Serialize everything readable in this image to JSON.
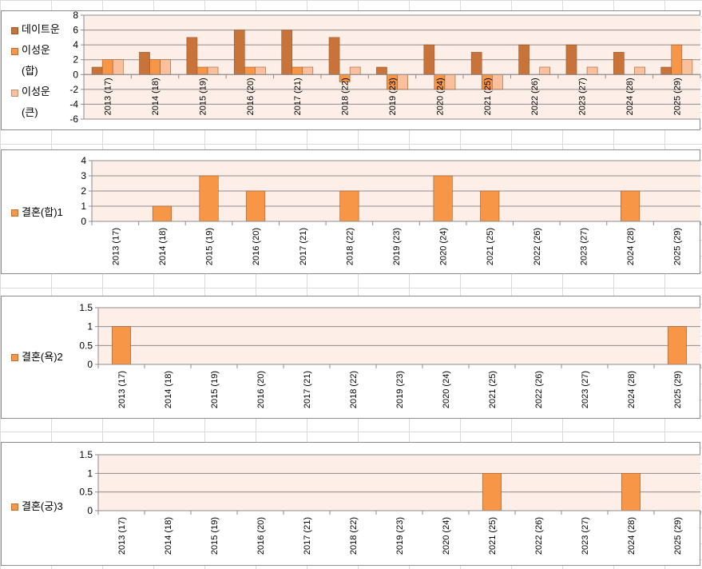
{
  "chart_data": [
    {
      "type": "bar",
      "categories": [
        "2013 (17)",
        "2014 (18)",
        "2015 (19)",
        "2016 (20)",
        "2017 (21)",
        "2018 (22)",
        "2019 (23)",
        "2020 (24)",
        "2021 (25)",
        "2022 (26)",
        "2023 (27)",
        "2024 (28)",
        "2025 (29)"
      ],
      "series": [
        {
          "name": "데이트운",
          "color": "#c8733a",
          "values": [
            1,
            3,
            5,
            6,
            6,
            5,
            1,
            4,
            3,
            4,
            4,
            3,
            1
          ]
        },
        {
          "name": "이성운(합)",
          "color": "#f79646",
          "values": [
            2,
            2,
            1,
            1,
            1,
            -1,
            -2,
            -2,
            -2,
            0,
            0,
            0,
            4
          ]
        },
        {
          "name": "이성운(큰)",
          "color": "#fac09d",
          "values": [
            2,
            2,
            1,
            1,
            1,
            1,
            -2,
            -2,
            -2,
            1,
            1,
            1,
            2
          ]
        }
      ],
      "ylim": [
        -6,
        8
      ],
      "yticks": [
        8,
        6,
        4,
        2,
        0,
        -2,
        -4,
        -6
      ],
      "ytick_labels": [
        "8",
        "6",
        "4",
        "2",
        "0",
        "-2",
        "-4",
        "-6"
      ],
      "grid": true,
      "legend": "left",
      "plot_bg": "#fdeee8"
    },
    {
      "type": "bar",
      "categories": [
        "2013 (17)",
        "2014 (18)",
        "2015 (19)",
        "2016 (20)",
        "2017 (21)",
        "2018 (22)",
        "2019 (23)",
        "2020 (24)",
        "2021 (25)",
        "2022 (26)",
        "2023 (27)",
        "2024 (28)",
        "2025 (29)"
      ],
      "series": [
        {
          "name": "결혼(합)1",
          "color": "#f79646",
          "values": [
            0,
            1,
            3,
            2,
            0,
            2,
            0,
            3,
            2,
            0,
            0,
            2,
            0
          ]
        }
      ],
      "ylim": [
        0,
        4
      ],
      "yticks": [
        4,
        3,
        2,
        1,
        0
      ],
      "ytick_labels": [
        "4",
        "3",
        "2",
        "1",
        "0"
      ],
      "grid": true,
      "legend": "left",
      "plot_bg": "#fdeee8"
    },
    {
      "type": "bar",
      "categories": [
        "2013 (17)",
        "2014 (18)",
        "2015 (19)",
        "2016 (20)",
        "2017 (21)",
        "2018 (22)",
        "2019 (23)",
        "2020 (24)",
        "2021 (25)",
        "2022 (26)",
        "2023 (27)",
        "2024 (28)",
        "2025 (29)"
      ],
      "series": [
        {
          "name": "결혼(욕)2",
          "color": "#f79646",
          "values": [
            1,
            0,
            0,
            0,
            0,
            0,
            0,
            0,
            0,
            0,
            0,
            0,
            1
          ]
        }
      ],
      "ylim": [
        0,
        1.5
      ],
      "yticks": [
        1.5,
        1,
        0.5,
        0
      ],
      "ytick_labels": [
        "1.5",
        "1",
        "0.5",
        "0"
      ],
      "grid": true,
      "legend": "left",
      "plot_bg": "#fdeee8"
    },
    {
      "type": "bar",
      "categories": [
        "2013 (17)",
        "2014 (18)",
        "2015 (19)",
        "2016 (20)",
        "2017 (21)",
        "2018 (22)",
        "2019 (23)",
        "2020 (24)",
        "2021 (25)",
        "2022 (26)",
        "2023 (27)",
        "2024 (28)",
        "2025 (29)"
      ],
      "series": [
        {
          "name": "결혼(궁)3",
          "color": "#f79646",
          "values": [
            0,
            0,
            0,
            0,
            0,
            0,
            0,
            0,
            1,
            0,
            0,
            1,
            0
          ]
        }
      ],
      "ylim": [
        0,
        1.5
      ],
      "yticks": [
        1.5,
        1,
        0.5,
        0
      ],
      "ytick_labels": [
        "1.5",
        "1",
        "0.5",
        "0"
      ],
      "grid": true,
      "legend": "left",
      "plot_bg": "#fdeee8"
    }
  ]
}
